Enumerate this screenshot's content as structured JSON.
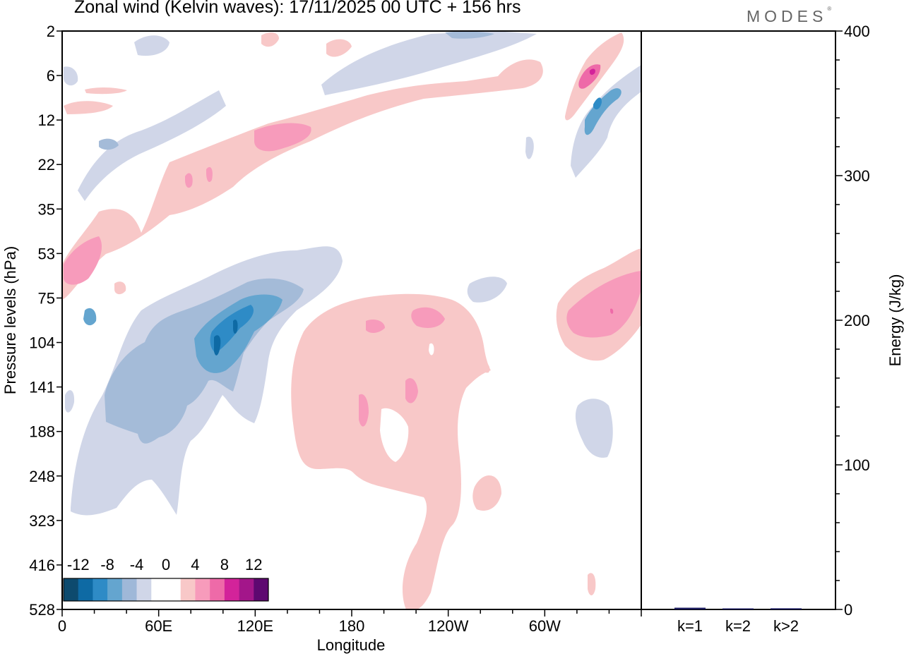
{
  "header": {
    "title": "Zonal wind (Kelvin waves):  17/11/2025  00 UTC  + 156 hrs",
    "brand": "MODES"
  },
  "chart_data": [
    {
      "type": "heatmap",
      "title": "Zonal wind (Kelvin waves):  17/11/2025  00 UTC  + 156 hrs",
      "xlabel": "Longitude",
      "ylabel": "Pressure levels (hPa)",
      "x_ticks": [
        "0",
        "60E",
        "120E",
        "180",
        "120W",
        "60W"
      ],
      "x_tick_degrees": [
        0,
        60,
        120,
        180,
        240,
        300
      ],
      "x_range_degrees": [
        0,
        360
      ],
      "y_ticks": [
        "2",
        "6",
        "12",
        "22",
        "35",
        "53",
        "75",
        "104",
        "141",
        "188",
        "248",
        "323",
        "416",
        "528"
      ],
      "y_scale": "log-pressure",
      "colorbar": {
        "labels": [
          "-12",
          "-8",
          "-4",
          "0",
          "4",
          "8",
          "12"
        ],
        "colors": [
          "#0d4a6e",
          "#0e6aa4",
          "#2e8bc6",
          "#64a5cf",
          "#9fb8d8",
          "#d0d6e8",
          "#ffffff",
          "#ffffff",
          "#f8c8c8",
          "#f79bbb",
          "#ee6aa8",
          "#d3239a",
          "#a3168a",
          "#5e0870"
        ]
      },
      "regions": [
        {
          "name": "upper-negative-band",
          "sign": "negative"
        },
        {
          "name": "upper-positive-band",
          "sign": "positive"
        },
        {
          "name": "lower-negative-region",
          "sign": "negative"
        },
        {
          "name": "lower-positive-region",
          "sign": "positive"
        },
        {
          "name": "east-positive-region",
          "sign": "positive"
        },
        {
          "name": "upper-right-negative-band",
          "sign": "negative"
        },
        {
          "name": "upper-right-positive-band",
          "sign": "positive"
        }
      ]
    },
    {
      "type": "bar",
      "ylabel": "Energy (J/kg)",
      "ylim": [
        0,
        400
      ],
      "y_ticks": [
        "0",
        "100",
        "200",
        "300",
        "400"
      ],
      "categories": [
        "k=1",
        "k=2",
        "k>2"
      ],
      "values": [
        1.2,
        0.3,
        0.8
      ],
      "bar_color": "#1a1a5e"
    }
  ]
}
